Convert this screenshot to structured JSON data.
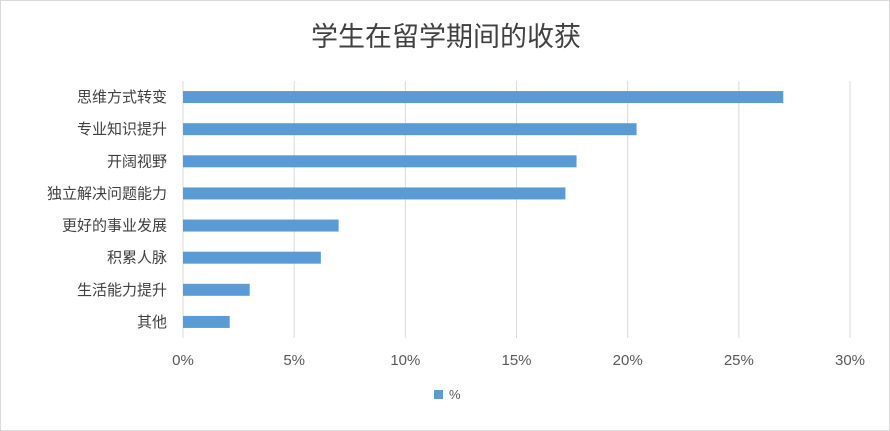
{
  "chart_data": {
    "type": "bar",
    "orientation": "horizontal",
    "title": "学生在留学期间的收获",
    "categories": [
      "思维方式转变",
      "专业知识提升",
      "开阔视野",
      "独立解决问题能力",
      "更好的事业发展",
      "积累人脉",
      "生活能力提升",
      "其他"
    ],
    "series": [
      {
        "name": "%",
        "values": [
          0.27,
          0.204,
          0.177,
          0.172,
          0.07,
          0.062,
          0.03,
          0.021
        ],
        "color": "#5b9bd5"
      }
    ],
    "xlim": [
      0,
      0.3
    ],
    "xticks": [
      "0%",
      "5%",
      "10%",
      "15%",
      "20%",
      "25%",
      "30%"
    ],
    "grid": true,
    "legend": "bottom"
  }
}
